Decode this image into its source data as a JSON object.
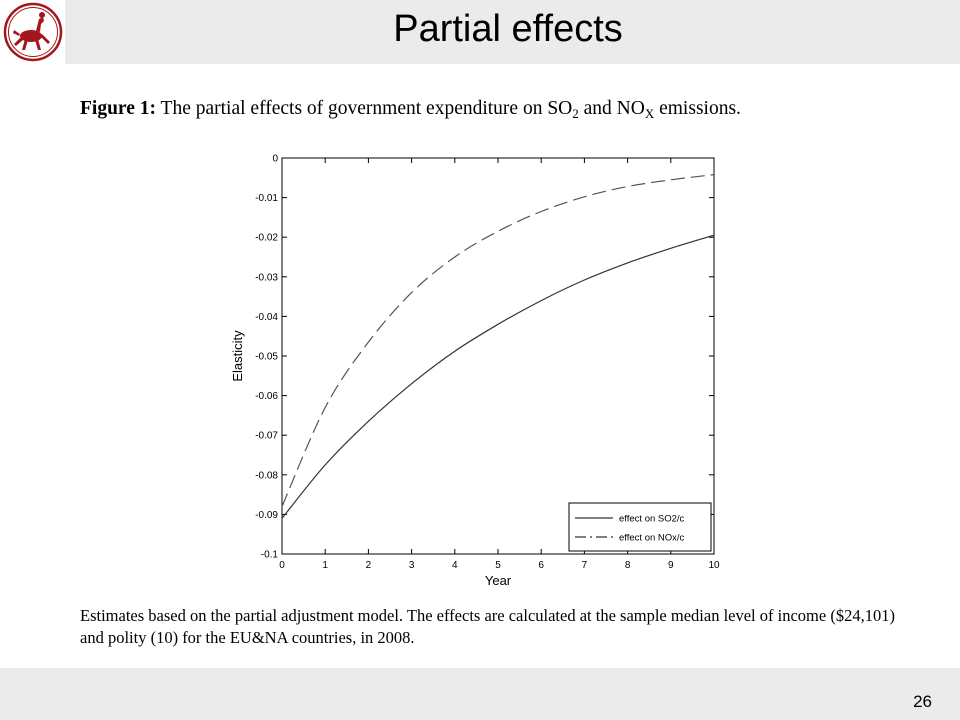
{
  "slide": {
    "title": "Partial effects",
    "page_number": "26"
  },
  "figure": {
    "label": "Figure 1:",
    "caption_pre": "The partial effects of government expenditure on SO",
    "caption_sub1": "2",
    "caption_mid": " and NO",
    "caption_sub2": "X",
    "caption_post": " emissions.",
    "note": "Estimates based on the partial adjustment model. The effects are calculated at the sample median level of income ($24,101) and polity (10) for the EU&NA countries, in 2008."
  },
  "colors": {
    "logo": "#a3171c",
    "bar": "#ebebeb"
  },
  "chart_data": {
    "type": "line",
    "xlabel": "Year",
    "ylabel": "Elasticity",
    "xlim": [
      0,
      10
    ],
    "ylim": [
      -0.1,
      0
    ],
    "x_ticks": [
      0,
      1,
      2,
      3,
      4,
      5,
      6,
      7,
      8,
      9,
      10
    ],
    "y_ticks": [
      0,
      -0.01,
      -0.02,
      -0.03,
      -0.04,
      -0.05,
      -0.06,
      -0.07,
      -0.08,
      -0.09,
      -0.1
    ],
    "y_tick_labels": [
      "0",
      "-0.01",
      "-0.02",
      "-0.03",
      "-0.04",
      "-0.05",
      "-0.06",
      "-0.07",
      "-0.08",
      "-0.09",
      "-0.1"
    ],
    "x": [
      0,
      1,
      2,
      3,
      4,
      5,
      6,
      7,
      8,
      9,
      10
    ],
    "series": [
      {
        "name": "effect on SO2/c",
        "style": "solid",
        "values": [
          -0.091,
          -0.0775,
          -0.0665,
          -0.057,
          -0.0488,
          -0.042,
          -0.036,
          -0.0308,
          -0.0265,
          -0.0228,
          -0.0195
        ]
      },
      {
        "name": "effect on NOx/c",
        "style": "dashed",
        "values": [
          -0.088,
          -0.063,
          -0.0465,
          -0.034,
          -0.025,
          -0.0185,
          -0.0135,
          -0.0098,
          -0.0072,
          -0.0055,
          -0.0042
        ]
      }
    ],
    "legend_position": "bottom-right",
    "grid": false
  }
}
